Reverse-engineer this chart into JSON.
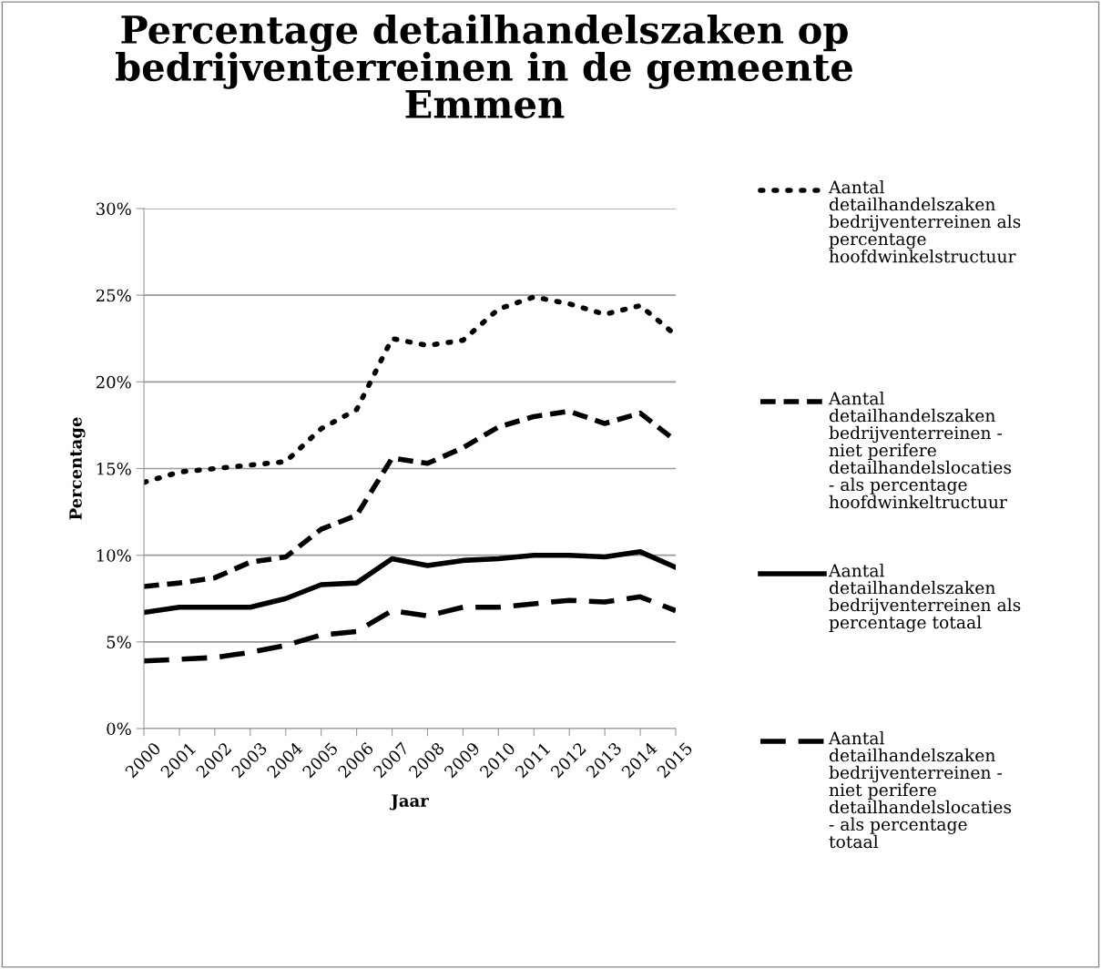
{
  "chart_data": {
    "type": "line",
    "title": "Percentage detailhandelszaken op bedrijventerreinen in de gemeente Emmen",
    "xlabel": "Jaar",
    "ylabel": "Percentage",
    "categories": [
      "2000",
      "2001",
      "2002",
      "2003",
      "2004",
      "2005",
      "2006",
      "2007",
      "2008",
      "2009",
      "2010",
      "2011",
      "2012",
      "2013",
      "2014",
      "2015"
    ],
    "series": [
      {
        "name": "Aantal detailhandelszaken bedrijventerreinen als percentage hoofdwinkelstructuur",
        "color": "#000000",
        "line_style": "dotted",
        "values": [
          14.2,
          14.8,
          15.0,
          15.2,
          15.4,
          17.3,
          18.4,
          22.5,
          22.1,
          22.4,
          24.2,
          24.9,
          24.5,
          23.9,
          24.4,
          22.7
        ]
      },
      {
        "name": "Aantal detailhandelszaken bedrijventerreinen - niet perifere detailhandelslocaties - als percentage hoofdwinkeltructuur",
        "color": "#000000",
        "line_style": "dashed",
        "values": [
          8.2,
          8.4,
          8.7,
          9.6,
          9.9,
          11.5,
          12.3,
          15.6,
          15.3,
          16.2,
          17.4,
          18.0,
          18.3,
          17.6,
          18.2,
          16.6
        ]
      },
      {
        "name": "Aantal detailhandelszaken bedrijventerreinen als percentage totaal",
        "color": "#000000",
        "line_style": "solid",
        "values": [
          6.7,
          7.0,
          7.0,
          7.0,
          7.5,
          8.3,
          8.4,
          9.8,
          9.4,
          9.7,
          9.8,
          10.0,
          10.0,
          9.9,
          10.2,
          9.3
        ]
      },
      {
        "name": "Aantal detailhandelszaken bedrijventerreinen - niet perifere detailhandelslocaties - als percentage totaal",
        "color": "#000000",
        "line_style": "dashed",
        "values": [
          3.9,
          4.0,
          4.1,
          4.4,
          4.8,
          5.4,
          5.6,
          6.8,
          6.5,
          7.0,
          7.0,
          7.2,
          7.4,
          7.3,
          7.6,
          6.8
        ]
      }
    ],
    "ylim": [
      0,
      30
    ],
    "yticks": [
      {
        "value": 0,
        "label": "0%"
      },
      {
        "value": 5,
        "label": "5%"
      },
      {
        "value": 10,
        "label": "10%"
      },
      {
        "value": 15,
        "label": "15%"
      },
      {
        "value": 20,
        "label": "20%"
      },
      {
        "value": 25,
        "label": "25%"
      },
      {
        "value": 30,
        "label": "30%"
      }
    ],
    "grid": "y",
    "legend": "right",
    "marker": "none"
  }
}
